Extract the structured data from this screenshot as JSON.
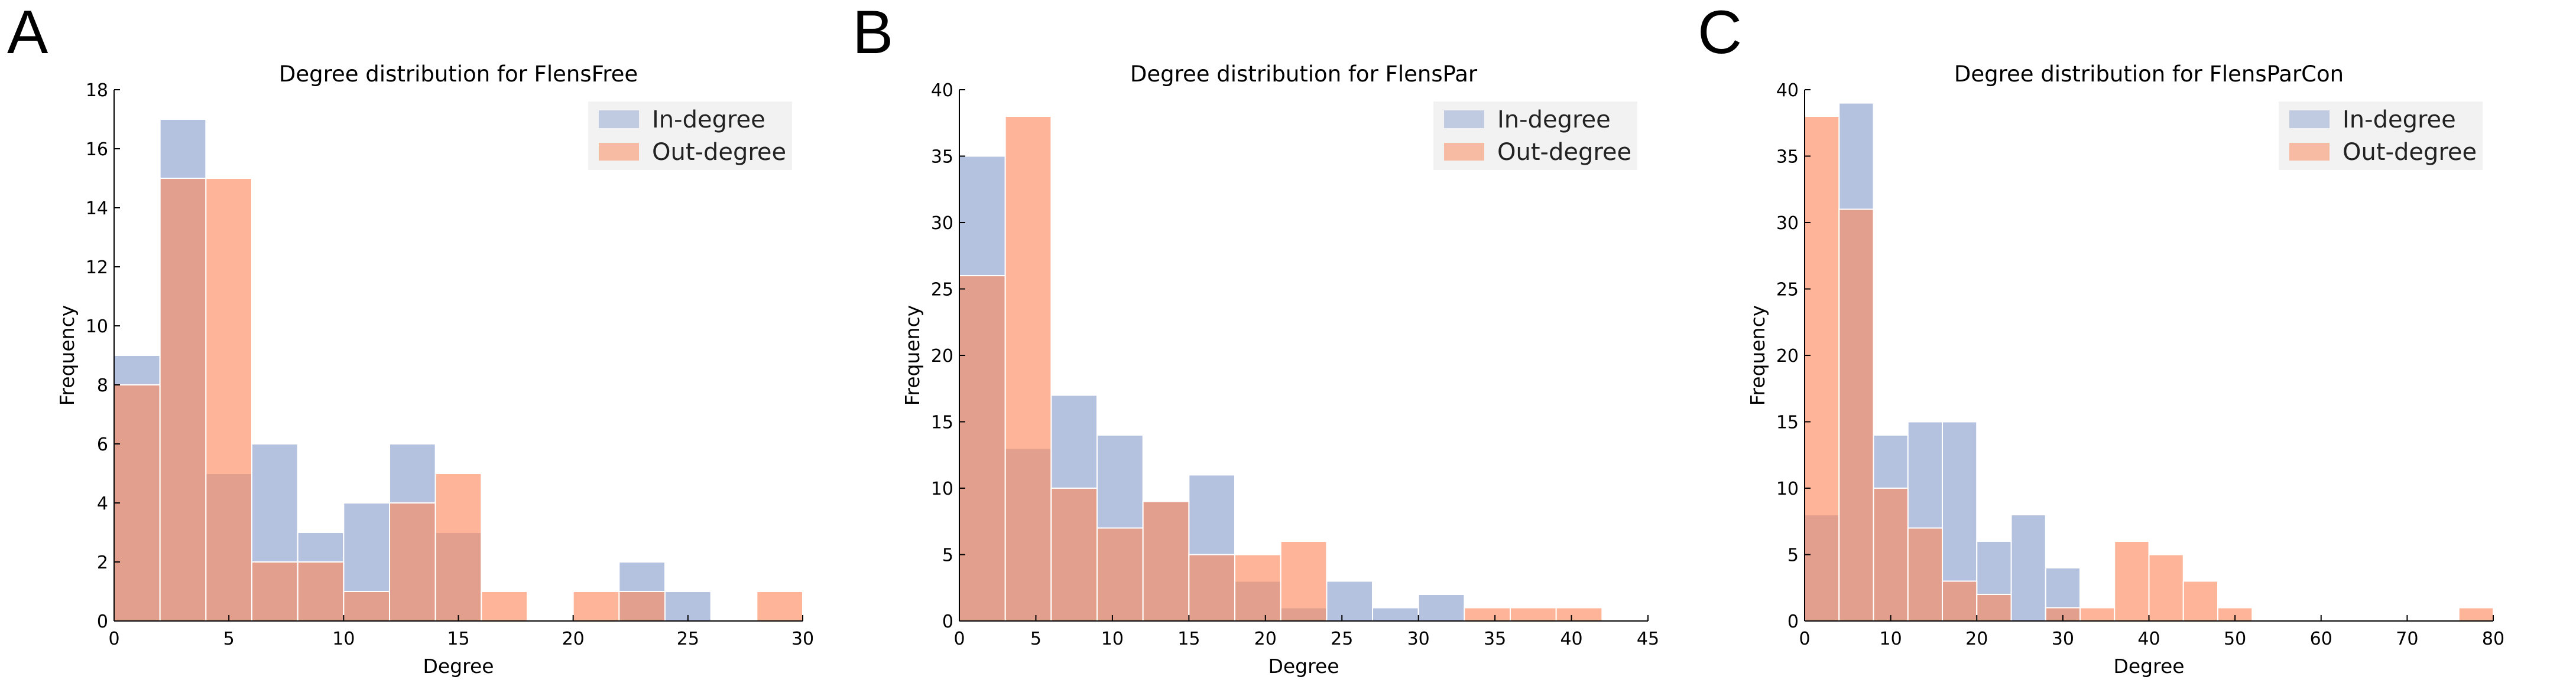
{
  "colors": {
    "in_degree": "#97A9D3",
    "out_degree": "#FC8D62",
    "legend_bg": "#F2F2F2"
  },
  "panels": [
    {
      "letter": "A",
      "chart_data": {
        "type": "bar",
        "title": "Degree distribution for FlensFree",
        "xlabel": "Degree",
        "ylabel": "Frequency",
        "xlim": [
          0,
          30
        ],
        "ylim": [
          0,
          18
        ],
        "xticks": [
          "0",
          "5",
          "10",
          "15",
          "20",
          "25",
          "30"
        ],
        "yticks": [
          "0",
          "2",
          "4",
          "6",
          "8",
          "10",
          "12",
          "14",
          "16",
          "18"
        ],
        "legend": {
          "position": "top-right",
          "entries": [
            "In-degree",
            "Out-degree"
          ]
        },
        "series": [
          {
            "name": "In-degree",
            "bins": [
              {
                "x0": 0,
                "x1": 2,
                "value": 9
              },
              {
                "x0": 2,
                "x1": 4,
                "value": 17
              },
              {
                "x0": 4,
                "x1": 6,
                "value": 5
              },
              {
                "x0": 6,
                "x1": 8,
                "value": 6
              },
              {
                "x0": 8,
                "x1": 10,
                "value": 3
              },
              {
                "x0": 10,
                "x1": 12,
                "value": 4
              },
              {
                "x0": 12,
                "x1": 14,
                "value": 6
              },
              {
                "x0": 14,
                "x1": 16,
                "value": 3
              },
              {
                "x0": 22,
                "x1": 24,
                "value": 2
              },
              {
                "x0": 24,
                "x1": 26,
                "value": 1
              }
            ]
          },
          {
            "name": "Out-degree",
            "bins": [
              {
                "x0": 0,
                "x1": 2,
                "value": 8
              },
              {
                "x0": 2,
                "x1": 4,
                "value": 15
              },
              {
                "x0": 4,
                "x1": 6,
                "value": 15
              },
              {
                "x0": 6,
                "x1": 8,
                "value": 2
              },
              {
                "x0": 8,
                "x1": 10,
                "value": 2
              },
              {
                "x0": 10,
                "x1": 12,
                "value": 1
              },
              {
                "x0": 12,
                "x1": 14,
                "value": 4
              },
              {
                "x0": 14,
                "x1": 16,
                "value": 5
              },
              {
                "x0": 16,
                "x1": 18,
                "value": 1
              },
              {
                "x0": 20,
                "x1": 22,
                "value": 1
              },
              {
                "x0": 22,
                "x1": 24,
                "value": 1
              },
              {
                "x0": 28,
                "x1": 30,
                "value": 1
              }
            ]
          }
        ]
      }
    },
    {
      "letter": "B",
      "chart_data": {
        "type": "bar",
        "title": "Degree distribution for FlensPar",
        "xlabel": "Degree",
        "ylabel": "Frequency",
        "xlim": [
          0,
          45
        ],
        "ylim": [
          0,
          40
        ],
        "xticks": [
          "0",
          "5",
          "10",
          "15",
          "20",
          "25",
          "30",
          "35",
          "40",
          "45"
        ],
        "yticks": [
          "0",
          "5",
          "10",
          "15",
          "20",
          "25",
          "30",
          "35",
          "40"
        ],
        "legend": {
          "position": "top-right",
          "entries": [
            "In-degree",
            "Out-degree"
          ]
        },
        "series": [
          {
            "name": "In-degree",
            "bins": [
              {
                "x0": 0,
                "x1": 3,
                "value": 35
              },
              {
                "x0": 3,
                "x1": 6,
                "value": 13
              },
              {
                "x0": 6,
                "x1": 9,
                "value": 17
              },
              {
                "x0": 9,
                "x1": 12,
                "value": 14
              },
              {
                "x0": 12,
                "x1": 15,
                "value": 9
              },
              {
                "x0": 15,
                "x1": 18,
                "value": 11
              },
              {
                "x0": 18,
                "x1": 21,
                "value": 3
              },
              {
                "x0": 21,
                "x1": 24,
                "value": 1
              },
              {
                "x0": 24,
                "x1": 27,
                "value": 3
              },
              {
                "x0": 27,
                "x1": 30,
                "value": 1
              },
              {
                "x0": 30,
                "x1": 33,
                "value": 2
              }
            ]
          },
          {
            "name": "Out-degree",
            "bins": [
              {
                "x0": 0,
                "x1": 3,
                "value": 26
              },
              {
                "x0": 3,
                "x1": 6,
                "value": 38
              },
              {
                "x0": 6,
                "x1": 9,
                "value": 10
              },
              {
                "x0": 9,
                "x1": 12,
                "value": 7
              },
              {
                "x0": 12,
                "x1": 15,
                "value": 9
              },
              {
                "x0": 15,
                "x1": 18,
                "value": 5
              },
              {
                "x0": 18,
                "x1": 21,
                "value": 5
              },
              {
                "x0": 21,
                "x1": 24,
                "value": 6
              },
              {
                "x0": 33,
                "x1": 36,
                "value": 1
              },
              {
                "x0": 36,
                "x1": 39,
                "value": 1
              },
              {
                "x0": 39,
                "x1": 42,
                "value": 1
              }
            ]
          }
        ]
      }
    },
    {
      "letter": "C",
      "chart_data": {
        "type": "bar",
        "title": "Degree distribution for FlensParCon",
        "xlabel": "Degree",
        "ylabel": "Frequency",
        "xlim": [
          0,
          80
        ],
        "ylim": [
          0,
          40
        ],
        "xticks": [
          "0",
          "10",
          "20",
          "30",
          "40",
          "50",
          "60",
          "70",
          "80"
        ],
        "yticks": [
          "0",
          "5",
          "10",
          "15",
          "20",
          "25",
          "30",
          "35",
          "40"
        ],
        "legend": {
          "position": "top-right",
          "entries": [
            "In-degree",
            "Out-degree"
          ]
        },
        "series": [
          {
            "name": "In-degree",
            "bins": [
              {
                "x0": 0,
                "x1": 4,
                "value": 8
              },
              {
                "x0": 4,
                "x1": 8,
                "value": 39
              },
              {
                "x0": 8,
                "x1": 12,
                "value": 14
              },
              {
                "x0": 12,
                "x1": 16,
                "value": 15
              },
              {
                "x0": 16,
                "x1": 20,
                "value": 15
              },
              {
                "x0": 20,
                "x1": 24,
                "value": 6
              },
              {
                "x0": 24,
                "x1": 28,
                "value": 8
              },
              {
                "x0": 28,
                "x1": 32,
                "value": 4
              }
            ]
          },
          {
            "name": "Out-degree",
            "bins": [
              {
                "x0": 0,
                "x1": 4,
                "value": 38
              },
              {
                "x0": 4,
                "x1": 8,
                "value": 31
              },
              {
                "x0": 8,
                "x1": 12,
                "value": 10
              },
              {
                "x0": 12,
                "x1": 16,
                "value": 7
              },
              {
                "x0": 16,
                "x1": 20,
                "value": 3
              },
              {
                "x0": 20,
                "x1": 24,
                "value": 2
              },
              {
                "x0": 28,
                "x1": 32,
                "value": 1
              },
              {
                "x0": 32,
                "x1": 36,
                "value": 1
              },
              {
                "x0": 36,
                "x1": 40,
                "value": 6
              },
              {
                "x0": 40,
                "x1": 44,
                "value": 5
              },
              {
                "x0": 44,
                "x1": 48,
                "value": 3
              },
              {
                "x0": 48,
                "x1": 52,
                "value": 1
              },
              {
                "x0": 76,
                "x1": 80,
                "value": 1
              }
            ]
          }
        ]
      }
    }
  ]
}
